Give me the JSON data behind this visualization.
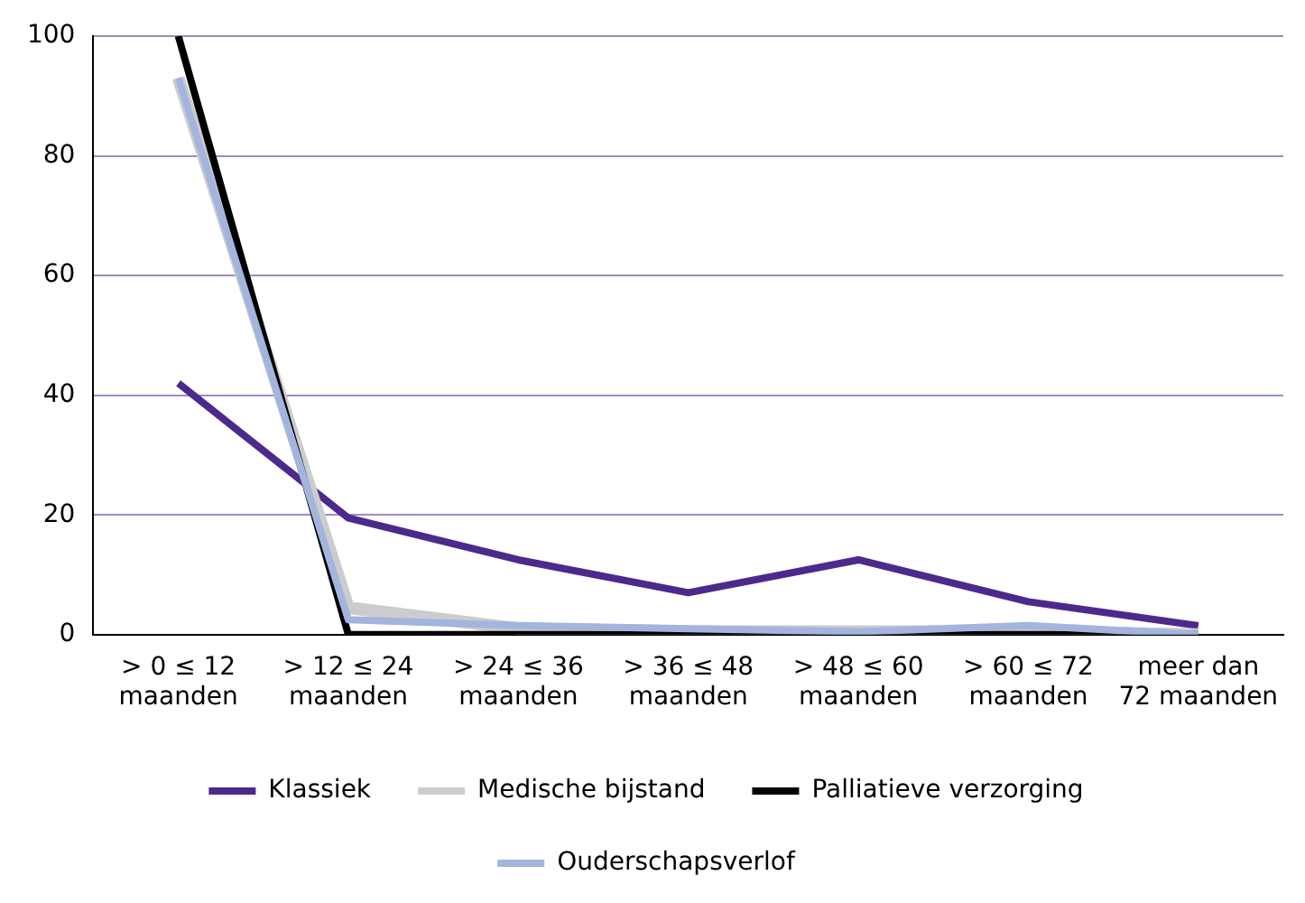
{
  "chart_data": {
    "type": "line",
    "categories": [
      "> 0 ≤ 12\nmaanden",
      "> 12 ≤ 24\nmaanden",
      "> 24 ≤ 36\nmaanden",
      "> 36 ≤ 48\nmaanden",
      "> 48 ≤ 60\nmaanden",
      "> 60 ≤ 72\nmaanden",
      "meer dan\n72 maanden"
    ],
    "series": [
      {
        "name": "Klassiek",
        "color": "#4b2a8c",
        "values": [
          42,
          19.5,
          12.5,
          7,
          12.5,
          5.5,
          1.5
        ]
      },
      {
        "name": "Medische bijstand",
        "color": "#cccccc",
        "values": [
          93,
          4.5,
          1,
          0.5,
          0.5,
          0.5,
          0
        ]
      },
      {
        "name": "Palliatieve verzorging",
        "color": "#000000",
        "values": [
          100,
          0,
          0,
          0,
          0,
          0,
          0
        ]
      },
      {
        "name": "Ouderschapsverlof",
        "color": "#a3b5de",
        "values": [
          93,
          2.5,
          1.5,
          1,
          0.5,
          1.5,
          0
        ]
      }
    ],
    "ylim": [
      0,
      100
    ],
    "yticks": [
      0,
      20,
      40,
      60,
      80,
      100
    ],
    "grid": "y",
    "legend": "bottom",
    "marker": "none",
    "line_style": "solid"
  }
}
